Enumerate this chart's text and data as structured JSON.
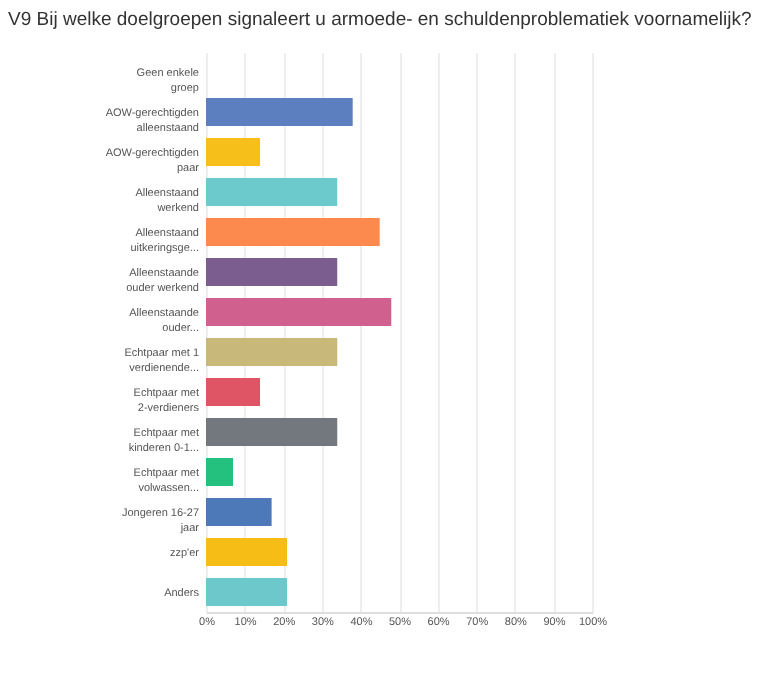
{
  "chart_data": {
    "type": "bar",
    "orientation": "horizontal",
    "title": "V9 Bij welke doelgroepen signaleert u armoede- en schuldenproblematiek voornamelijk?",
    "categories": [
      "Geen enkele groep",
      "AOW-gerechtigden alleenstaand",
      "AOW-gerechtigden paar",
      "Alleenstaand werkend",
      "Alleenstaand uitkeringsge...",
      "Alleenstaande ouder werkend",
      "Alleenstaande ouder...",
      "Echtpaar met 1 verdienende...",
      "Echtpaar met 2-verdieners",
      "Echtpaar met kinderen 0-1...",
      "Echtpaar met volwassen...",
      "Jongeren 16-27 jaar",
      "zzp'er",
      "Anders"
    ],
    "values": [
      0,
      38,
      14,
      34,
      45,
      34,
      48,
      34,
      14,
      34,
      7,
      17,
      21,
      21
    ],
    "colors": [
      "#5b7fbf",
      "#5b7fbf",
      "#f7bf1a",
      "#6cc9cc",
      "#fc8a4e",
      "#7b5d8f",
      "#d0608e",
      "#c8b97a",
      "#e05565",
      "#73787e",
      "#23c07e",
      "#4e79b8",
      "#f6bd16",
      "#6dc8cb"
    ],
    "xlim": [
      0,
      100
    ],
    "xticks": [
      {
        "value": 0,
        "label": "0%"
      },
      {
        "value": 10,
        "label": "10%"
      },
      {
        "value": 20,
        "label": "20%"
      },
      {
        "value": 30,
        "label": "30%"
      },
      {
        "value": 40,
        "label": "40%"
      },
      {
        "value": 50,
        "label": "50%"
      },
      {
        "value": 60,
        "label": "60%"
      },
      {
        "value": 70,
        "label": "70%"
      },
      {
        "value": 80,
        "label": "80%"
      },
      {
        "value": 90,
        "label": "90%"
      },
      {
        "value": 100,
        "label": "100%"
      }
    ],
    "grid": "x"
  }
}
